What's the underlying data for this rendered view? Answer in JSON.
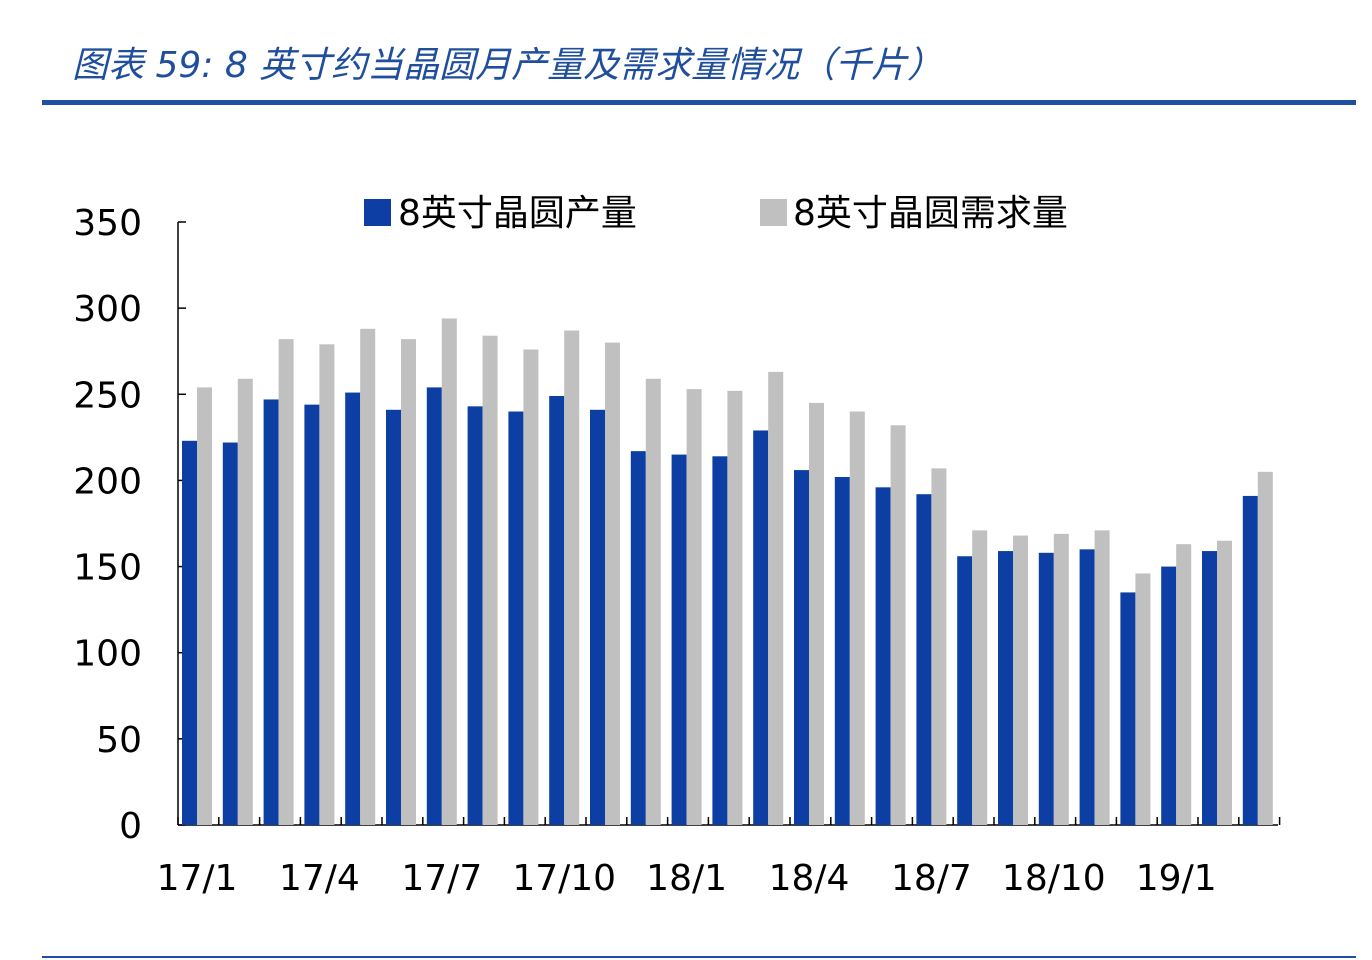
{
  "header": {
    "title": "图表 59:  8 英寸约当晶圆月产量及需求量情况（千片）"
  },
  "chart_data": {
    "type": "bar",
    "x_tick_labels": [
      "17/1",
      "17/4",
      "17/7",
      "17/10",
      "18/1",
      "18/4",
      "18/7",
      "18/10",
      "19/1"
    ],
    "categories": [
      "17/1",
      "17/2",
      "17/3",
      "17/4",
      "17/5",
      "17/6",
      "17/7",
      "17/8",
      "17/9",
      "17/10",
      "17/11",
      "17/12",
      "18/1",
      "18/2",
      "18/3",
      "18/4",
      "18/5",
      "18/6",
      "18/7",
      "18/8",
      "18/9",
      "18/10",
      "18/11",
      "18/12",
      "19/1",
      "19/2",
      "19/3"
    ],
    "series": [
      {
        "name": "8英寸晶圆产量",
        "color": "#0d3ea3",
        "values": [
          223,
          222,
          247,
          244,
          251,
          241,
          254,
          243,
          240,
          249,
          241,
          217,
          215,
          214,
          229,
          206,
          202,
          196,
          192,
          156,
          159,
          158,
          160,
          135,
          150,
          159,
          191
        ]
      },
      {
        "name": "8英寸晶圆需求量",
        "color": "#c0c0c0",
        "values": [
          254,
          259,
          282,
          279,
          288,
          282,
          294,
          284,
          276,
          287,
          280,
          259,
          253,
          252,
          263,
          245,
          240,
          232,
          207,
          171,
          168,
          169,
          171,
          146,
          163,
          165,
          205
        ]
      }
    ],
    "ylim": [
      0,
      350
    ],
    "yticks": [
      0,
      50,
      100,
      150,
      200,
      250,
      300,
      350
    ],
    "grid": false,
    "legend_position": "top"
  }
}
